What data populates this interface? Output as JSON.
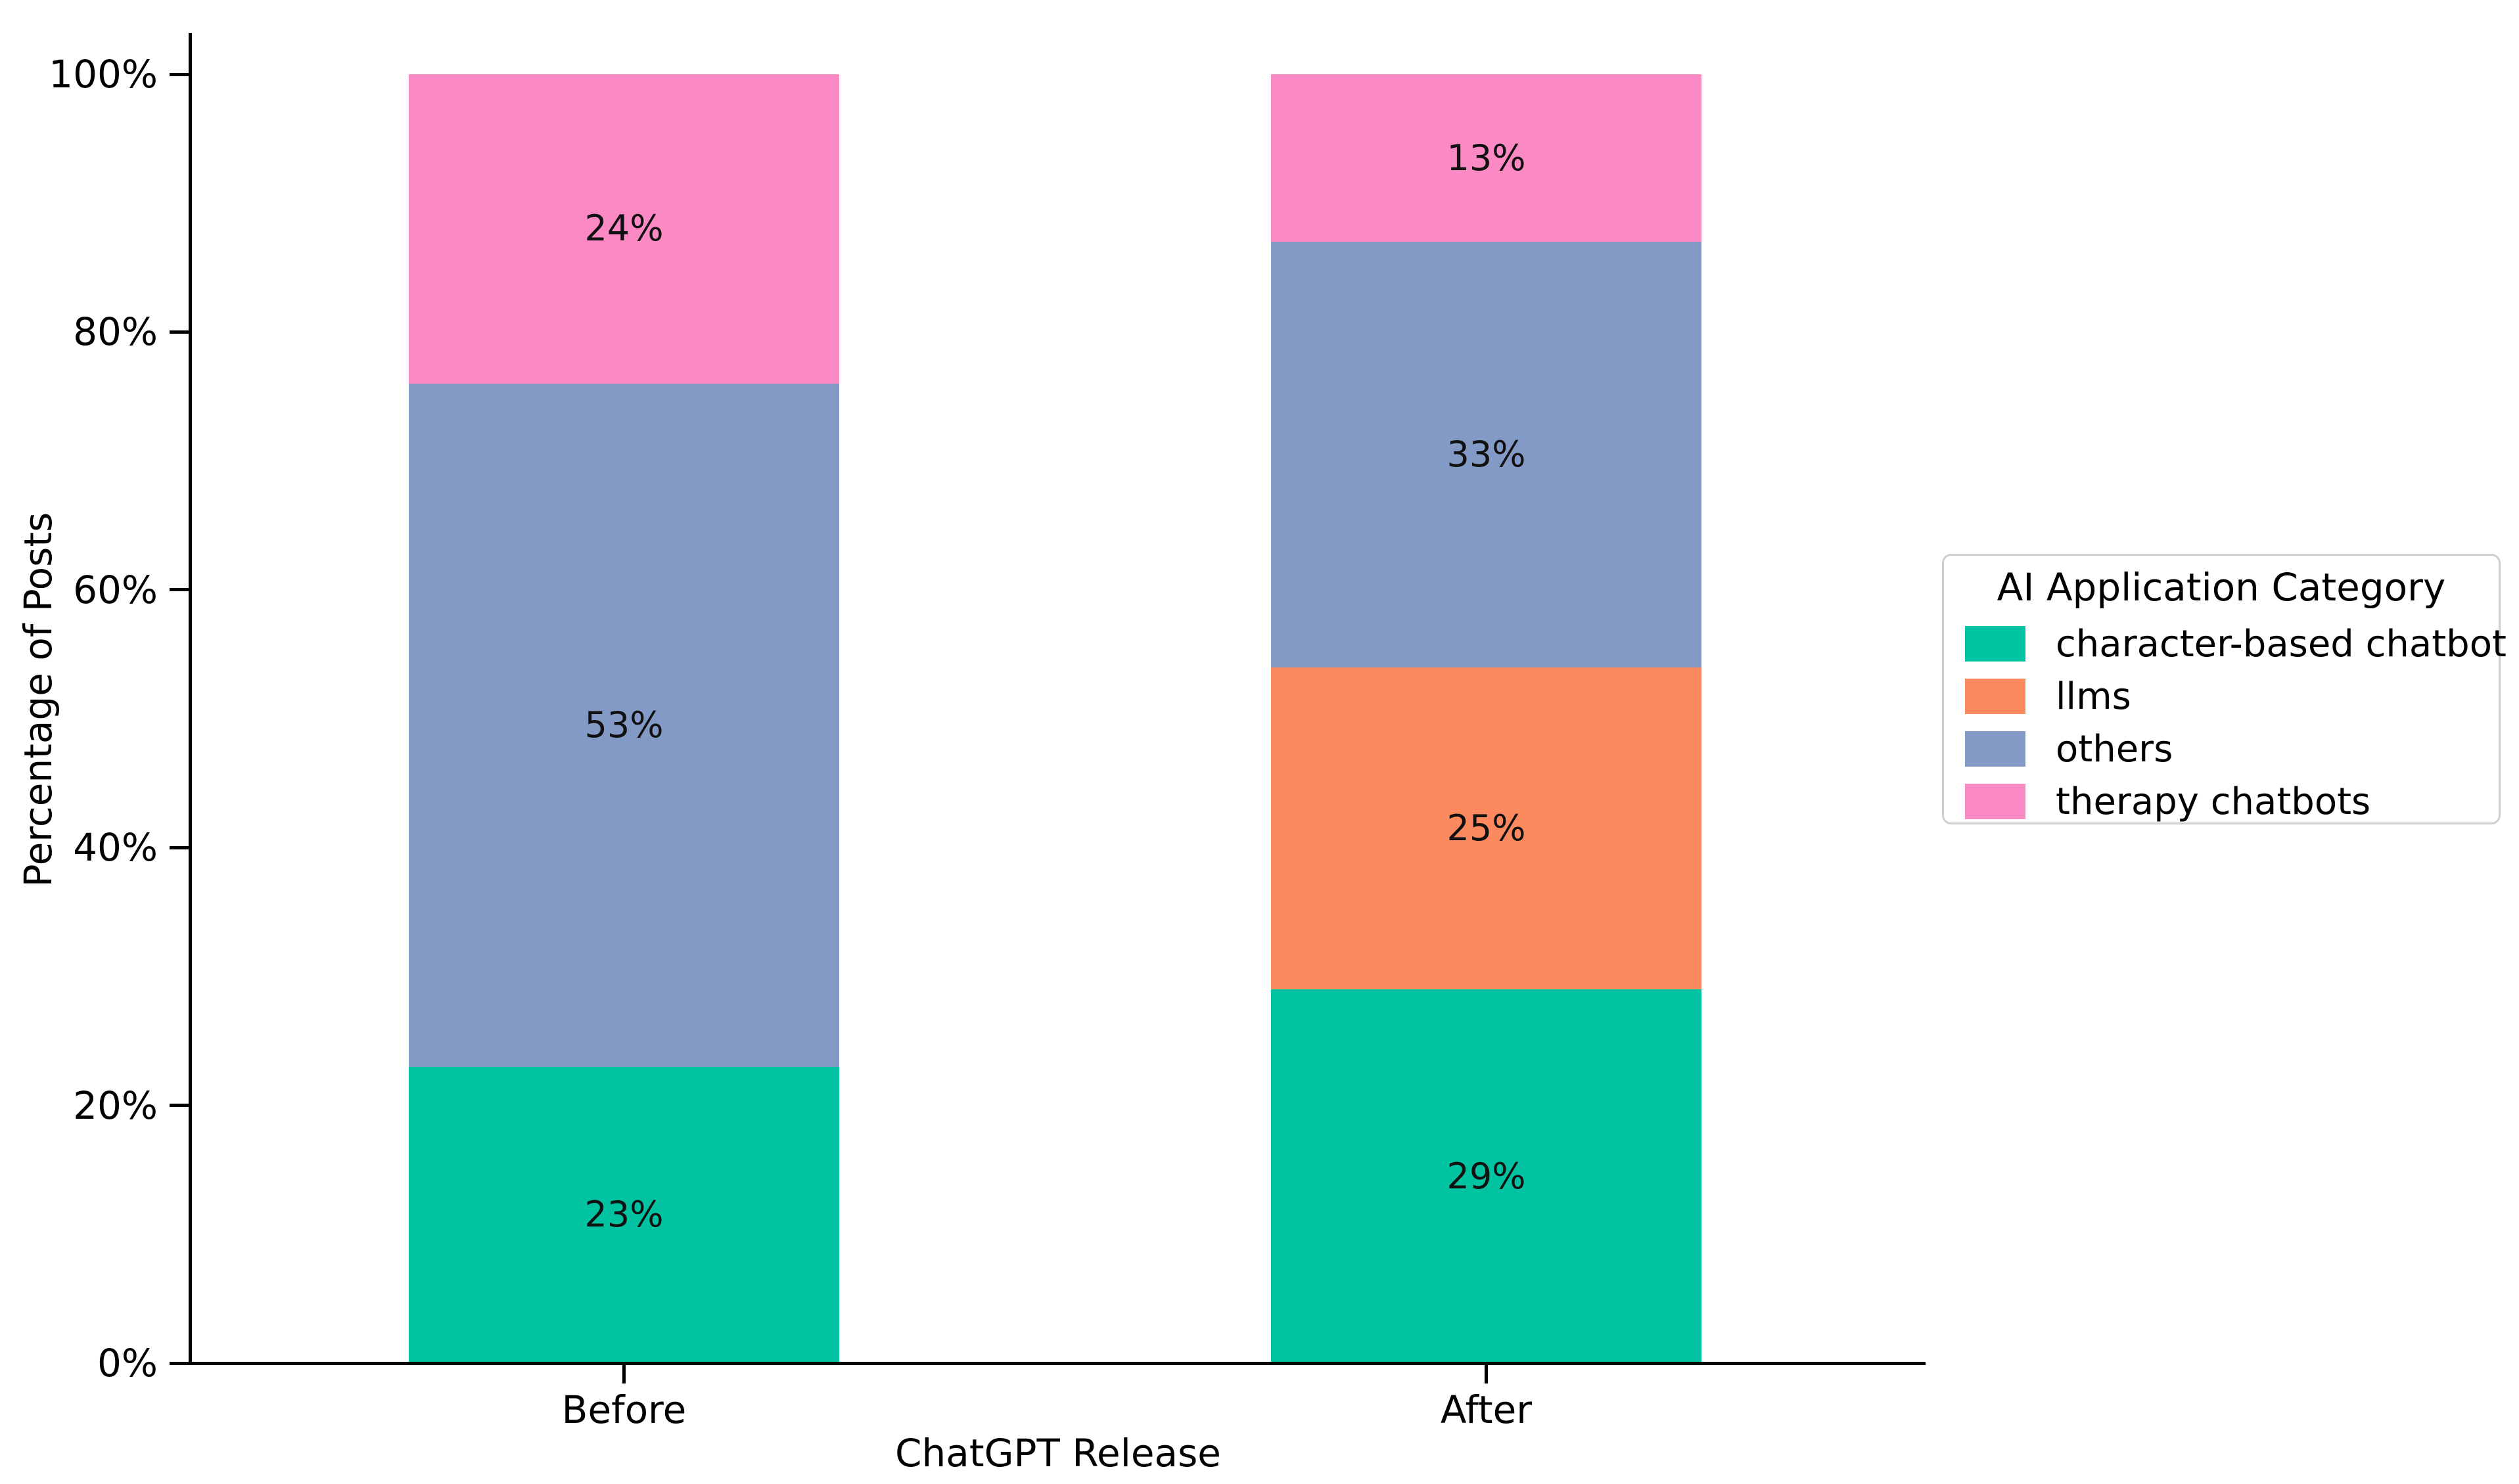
{
  "chart_data": {
    "type": "bar",
    "stacked": true,
    "orientation": "vertical",
    "categories": [
      "Before",
      "After"
    ],
    "series": [
      {
        "name": "character-based chatbot",
        "color": "#02c3a1",
        "values": [
          23,
          29
        ]
      },
      {
        "name": "llms",
        "color": "#fc8a5e",
        "values": [
          0,
          25
        ]
      },
      {
        "name": "others",
        "color": "#8399c6",
        "values": [
          53,
          33
        ]
      },
      {
        "name": "therapy chatbots",
        "color": "#fb8ac4",
        "values": [
          24,
          13
        ]
      }
    ],
    "bar_segment_labels": [
      [
        "23%",
        "",
        "53%",
        "24%"
      ],
      [
        "29%",
        "25%",
        "33%",
        "13%"
      ]
    ],
    "title": "",
    "xlabel": "ChatGPT Release",
    "ylabel": "Percentage of Posts",
    "ylim": [
      0,
      100
    ],
    "yticks": [
      "0%",
      "20%",
      "40%",
      "60%",
      "80%",
      "100%"
    ],
    "grid": false,
    "legend": {
      "title": "AI Application Category",
      "position": "center right",
      "entries": [
        "character-based chatbot",
        "llms",
        "others",
        "therapy chatbots"
      ]
    }
  }
}
